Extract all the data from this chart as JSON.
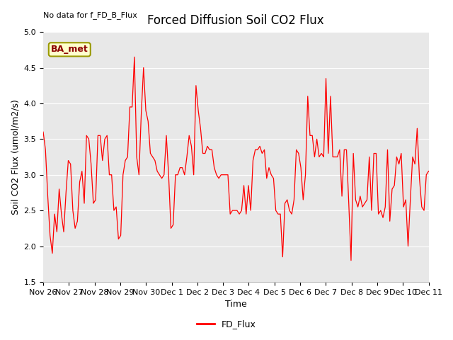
{
  "title": "Forced Diffusion Soil CO2 Flux",
  "ylabel": "Soil CO2 Flux (umol/m2/s)",
  "xlabel": "Time",
  "no_data_text": "No data for f_FD_B_Flux",
  "legend_label": "FD_Flux",
  "annotation_text": "BA_met",
  "ylim": [
    1.5,
    5.0
  ],
  "line_color": "red",
  "background_color": "#e8e8e8",
  "tick_labels": [
    "Nov 26",
    "Nov 27",
    "Nov 28",
    "Nov 29",
    "Nov 30",
    "Dec 1",
    "Dec 2",
    "Dec 3",
    "Dec 4",
    "Dec 5",
    "Dec 6",
    "Dec 7",
    "Dec 8",
    "Dec 9",
    "Dec 10",
    "Dec 11"
  ],
  "y_values": [
    3.6,
    3.35,
    2.7,
    2.15,
    1.9,
    2.45,
    2.2,
    2.8,
    2.45,
    2.2,
    2.75,
    3.2,
    3.15,
    2.5,
    2.25,
    2.35,
    2.9,
    3.05,
    2.6,
    3.55,
    3.5,
    3.15,
    2.6,
    2.65,
    3.55,
    3.55,
    3.2,
    3.5,
    3.55,
    3.0,
    3.0,
    2.5,
    2.55,
    2.1,
    2.15,
    3.0,
    3.2,
    3.25,
    3.95,
    3.95,
    4.65,
    3.25,
    3.0,
    3.85,
    4.5,
    3.9,
    3.75,
    3.3,
    3.25,
    3.2,
    3.05,
    3.0,
    2.95,
    3.0,
    3.55,
    3.0,
    2.25,
    2.3,
    3.0,
    3.0,
    3.1,
    3.1,
    3.0,
    3.25,
    3.55,
    3.4,
    3.0,
    4.25,
    3.9,
    3.65,
    3.3,
    3.3,
    3.4,
    3.35,
    3.35,
    3.1,
    3.0,
    2.95,
    3.0,
    3.0,
    3.0,
    3.0,
    2.45,
    2.5,
    2.5,
    2.5,
    2.45,
    2.5,
    2.85,
    2.45,
    2.85,
    2.5,
    3.2,
    3.35,
    3.35,
    3.4,
    3.3,
    3.35,
    2.95,
    3.1,
    3.0,
    2.95,
    2.5,
    2.45,
    2.45,
    1.85,
    2.6,
    2.65,
    2.5,
    2.45,
    2.65,
    3.35,
    3.3,
    3.1,
    2.65,
    3.0,
    4.1,
    3.55,
    3.55,
    3.25,
    3.5,
    3.25,
    3.3,
    3.25,
    4.35,
    3.3,
    4.1,
    3.25,
    3.25,
    3.25,
    3.35,
    2.7,
    3.35,
    3.35,
    2.6,
    1.8,
    3.3,
    2.65,
    2.55,
    2.7,
    2.55,
    2.6,
    2.65,
    3.25,
    2.5,
    3.3,
    3.3,
    2.45,
    2.5,
    2.4,
    2.55,
    3.35,
    2.35,
    2.8,
    2.85,
    3.25,
    3.15,
    3.3,
    2.55,
    2.65,
    2.0,
    2.65,
    3.25,
    3.15,
    3.65,
    2.95,
    2.55,
    2.5,
    3.0,
    3.05
  ],
  "title_fontsize": 12,
  "axis_label_fontsize": 9,
  "tick_fontsize": 8
}
